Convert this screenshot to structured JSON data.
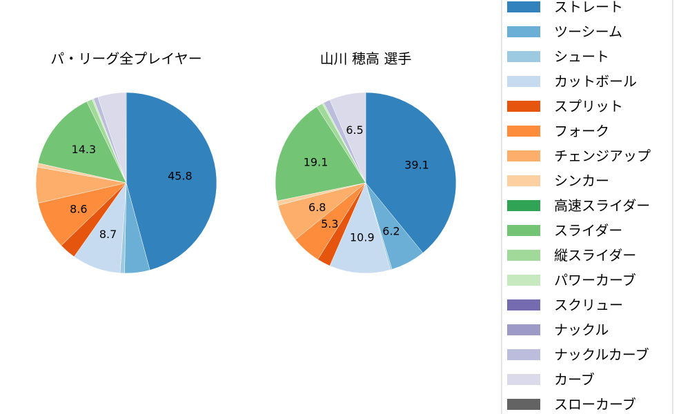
{
  "chart_data": [
    {
      "type": "pie",
      "title": "パ・リーグ全プレイヤー",
      "categories": [
        "ストレート",
        "ツーシーム",
        "シュート",
        "カットボール",
        "スプリット",
        "フォーク",
        "チェンジアップ",
        "シンカー",
        "高速スライダー",
        "スライダー",
        "縦スライダー",
        "パワーカーブ",
        "スクリュー",
        "ナックル",
        "ナックルカーブ",
        "カーブ",
        "スローカーブ"
      ],
      "values": [
        45.8,
        4.5,
        0.8,
        8.7,
        3.0,
        8.6,
        6.4,
        0.7,
        0,
        14.3,
        1.0,
        0.3,
        0,
        0,
        0.8,
        5.0,
        0.1
      ],
      "labels_shown": [
        "45.8",
        "",
        "",
        "8.7",
        "",
        "8.6",
        "",
        "",
        "",
        "14.3",
        "",
        "",
        "",
        "",
        "",
        "",
        ""
      ]
    },
    {
      "type": "pie",
      "title": "山川 穂高  選手",
      "categories": [
        "ストレート",
        "ツーシーム",
        "シュート",
        "カットボール",
        "スプリット",
        "フォーク",
        "チェンジアップ",
        "シンカー",
        "高速スライダー",
        "スライダー",
        "縦スライダー",
        "パワーカーブ",
        "スクリュー",
        "ナックル",
        "ナックルカーブ",
        "カーブ",
        "スローカーブ"
      ],
      "values": [
        39.1,
        6.2,
        0.3,
        10.9,
        2.4,
        5.3,
        6.8,
        0.8,
        0,
        19.1,
        1.1,
        0.3,
        0,
        0,
        1.2,
        6.5,
        0
      ],
      "labels_shown": [
        "39.1",
        "6.2",
        "",
        "10.9",
        "",
        "5.3",
        "6.8",
        "",
        "",
        "19.1",
        "",
        "",
        "",
        "",
        "",
        "6.5",
        ""
      ]
    }
  ],
  "legend": {
    "placement": "right",
    "items": [
      "ストレート",
      "ツーシーム",
      "シュート",
      "カットボール",
      "スプリット",
      "フォーク",
      "チェンジアップ",
      "シンカー",
      "高速スライダー",
      "スライダー",
      "縦スライダー",
      "パワーカーブ",
      "スクリュー",
      "ナックル",
      "ナックルカーブ",
      "カーブ",
      "スローカーブ"
    ],
    "colors": [
      "#3182bd",
      "#6baed6",
      "#9ecae1",
      "#c6dbef",
      "#e6550d",
      "#fd8d3c",
      "#fdae6b",
      "#fdd0a2",
      "#31a354",
      "#74c476",
      "#a1d99b",
      "#c7e9c0",
      "#756bb1",
      "#9e9ac8",
      "#bcbddc",
      "#dadaeb",
      "#636363"
    ]
  }
}
